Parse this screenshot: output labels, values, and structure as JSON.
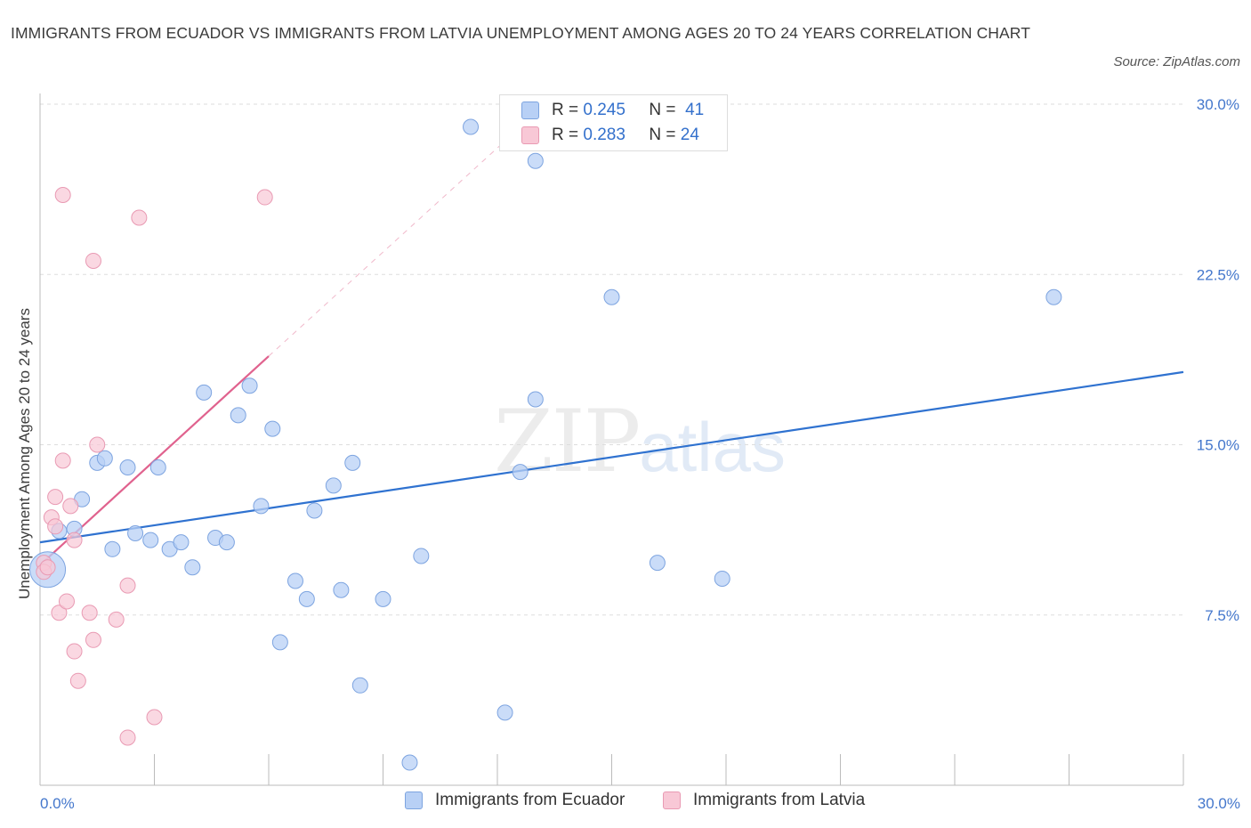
{
  "header": {
    "title": "IMMIGRANTS FROM ECUADOR VS IMMIGRANTS FROM LATVIA UNEMPLOYMENT AMONG AGES 20 TO 24 YEARS CORRELATION CHART",
    "source": "Source: ZipAtlas.com"
  },
  "watermark": {
    "main": "ZIP",
    "sub": "atlas"
  },
  "legend": {
    "r_label": "R =",
    "n_label": "N =",
    "ecuador": {
      "r": "0.245",
      "n": "41"
    },
    "latvia": {
      "r": "0.283",
      "n": "24"
    }
  },
  "colors": {
    "ecuador_fill": "#b8d0f5",
    "ecuador_stroke": "#7da4e0",
    "ecuador_line": "#2f72d0",
    "latvia_fill": "#f8c8d6",
    "latvia_stroke": "#e99ab3",
    "latvia_line": "#e0628e",
    "grid": "#dddddd",
    "tick_text": "#4477cc"
  },
  "chart_data": {
    "type": "scatter",
    "title": "IMMIGRANTS FROM ECUADOR VS IMMIGRANTS FROM LATVIA UNEMPLOYMENT AMONG AGES 20 TO 24 YEARS CORRELATION CHART",
    "xlabel": "",
    "ylabel": "Unemployment Among Ages 20 to 24 years",
    "xlim": [
      0,
      30
    ],
    "ylim": [
      0,
      30
    ],
    "x_tick_labels": [
      "0.0%",
      "30.0%"
    ],
    "y_ticks": [
      {
        "value": 7.5,
        "label": "7.5%"
      },
      {
        "value": 15,
        "label": "15.0%"
      },
      {
        "value": 22.5,
        "label": "22.5%"
      },
      {
        "value": 30,
        "label": "30.0%"
      }
    ],
    "series": [
      {
        "name": "Immigrants from Ecuador",
        "R": 0.245,
        "N": 41,
        "trend": {
          "x": [
            0,
            30
          ],
          "y": [
            10.7,
            18.2
          ]
        },
        "points": [
          {
            "x": 0.2,
            "y": 9.5,
            "big": true
          },
          {
            "x": 0.5,
            "y": 11.2
          },
          {
            "x": 0.9,
            "y": 11.3
          },
          {
            "x": 1.1,
            "y": 12.6
          },
          {
            "x": 1.5,
            "y": 14.2
          },
          {
            "x": 1.7,
            "y": 14.4
          },
          {
            "x": 1.9,
            "y": 10.4
          },
          {
            "x": 2.3,
            "y": 14.0
          },
          {
            "x": 2.5,
            "y": 11.1
          },
          {
            "x": 2.9,
            "y": 10.8
          },
          {
            "x": 3.1,
            "y": 14.0
          },
          {
            "x": 3.4,
            "y": 10.4
          },
          {
            "x": 3.7,
            "y": 10.7
          },
          {
            "x": 4.0,
            "y": 9.6
          },
          {
            "x": 4.3,
            "y": 17.3
          },
          {
            "x": 4.6,
            "y": 10.9
          },
          {
            "x": 4.9,
            "y": 10.7
          },
          {
            "x": 5.2,
            "y": 16.3
          },
          {
            "x": 5.5,
            "y": 17.6
          },
          {
            "x": 5.8,
            "y": 12.3
          },
          {
            "x": 6.1,
            "y": 15.7
          },
          {
            "x": 6.3,
            "y": 6.3
          },
          {
            "x": 6.7,
            "y": 9.0
          },
          {
            "x": 7.0,
            "y": 8.2
          },
          {
            "x": 7.2,
            "y": 12.1
          },
          {
            "x": 7.7,
            "y": 13.2
          },
          {
            "x": 7.9,
            "y": 8.6
          },
          {
            "x": 8.2,
            "y": 14.2
          },
          {
            "x": 8.4,
            "y": 4.4
          },
          {
            "x": 9.0,
            "y": 8.2
          },
          {
            "x": 9.7,
            "y": 1.0
          },
          {
            "x": 10.0,
            "y": 10.1
          },
          {
            "x": 11.3,
            "y": 29.0
          },
          {
            "x": 12.2,
            "y": 3.2
          },
          {
            "x": 13.0,
            "y": 17.0
          },
          {
            "x": 12.6,
            "y": 13.8
          },
          {
            "x": 13.0,
            "y": 27.5
          },
          {
            "x": 15.0,
            "y": 21.5
          },
          {
            "x": 16.2,
            "y": 9.8
          },
          {
            "x": 17.9,
            "y": 9.1
          },
          {
            "x": 26.6,
            "y": 21.5
          }
        ]
      },
      {
        "name": "Immigrants from Latvia",
        "R": 0.283,
        "N": 24,
        "trend": {
          "x": [
            0,
            6.0
          ],
          "y": [
            9.7,
            18.9
          ]
        },
        "trend_extension": {
          "x": [
            6.0,
            13.0
          ],
          "y": [
            18.9,
            29.6
          ]
        },
        "points": [
          {
            "x": 0.1,
            "y": 9.8
          },
          {
            "x": 0.1,
            "y": 9.4
          },
          {
            "x": 0.3,
            "y": 11.8
          },
          {
            "x": 0.4,
            "y": 12.7
          },
          {
            "x": 0.4,
            "y": 11.4
          },
          {
            "x": 0.5,
            "y": 7.6
          },
          {
            "x": 0.6,
            "y": 26.0
          },
          {
            "x": 0.6,
            "y": 14.3
          },
          {
            "x": 0.7,
            "y": 8.1
          },
          {
            "x": 0.8,
            "y": 12.3
          },
          {
            "x": 0.9,
            "y": 10.8
          },
          {
            "x": 0.9,
            "y": 5.9
          },
          {
            "x": 1.0,
            "y": 4.6
          },
          {
            "x": 1.3,
            "y": 7.6
          },
          {
            "x": 1.4,
            "y": 6.4
          },
          {
            "x": 1.4,
            "y": 23.1
          },
          {
            "x": 1.5,
            "y": 15.0
          },
          {
            "x": 2.0,
            "y": 7.3
          },
          {
            "x": 2.3,
            "y": 2.1
          },
          {
            "x": 2.3,
            "y": 8.8
          },
          {
            "x": 2.6,
            "y": 25.0
          },
          {
            "x": 3.0,
            "y": 3.0
          },
          {
            "x": 5.9,
            "y": 25.9
          },
          {
            "x": 0.2,
            "y": 9.6
          }
        ]
      }
    ]
  }
}
